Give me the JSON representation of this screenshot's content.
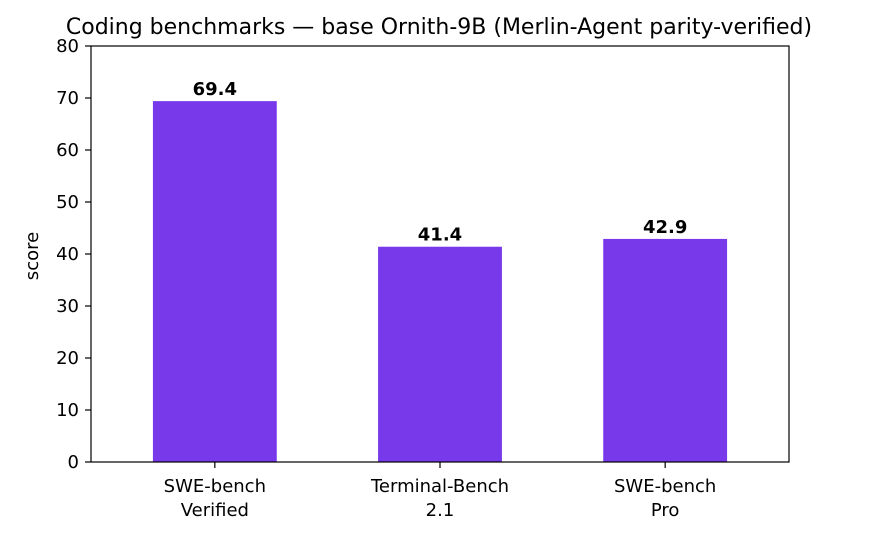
{
  "chart_data": {
    "type": "bar",
    "title": "Coding benchmarks — base Ornith-9B (Merlin-Agent parity-verified)",
    "xlabel": "",
    "ylabel": "score",
    "categories": [
      [
        "SWE-bench",
        "Verified"
      ],
      [
        "Terminal-Bench",
        "2.1"
      ],
      [
        "SWE-bench",
        "Pro"
      ]
    ],
    "values": [
      69.4,
      41.4,
      42.9
    ],
    "data_labels": [
      "69.4",
      "41.4",
      "42.9"
    ],
    "ylim": [
      0,
      80
    ],
    "yticks": [
      0,
      10,
      20,
      30,
      40,
      50,
      60,
      70,
      80
    ],
    "grid": false,
    "legend": "none",
    "bar_color": "#7839ea"
  }
}
